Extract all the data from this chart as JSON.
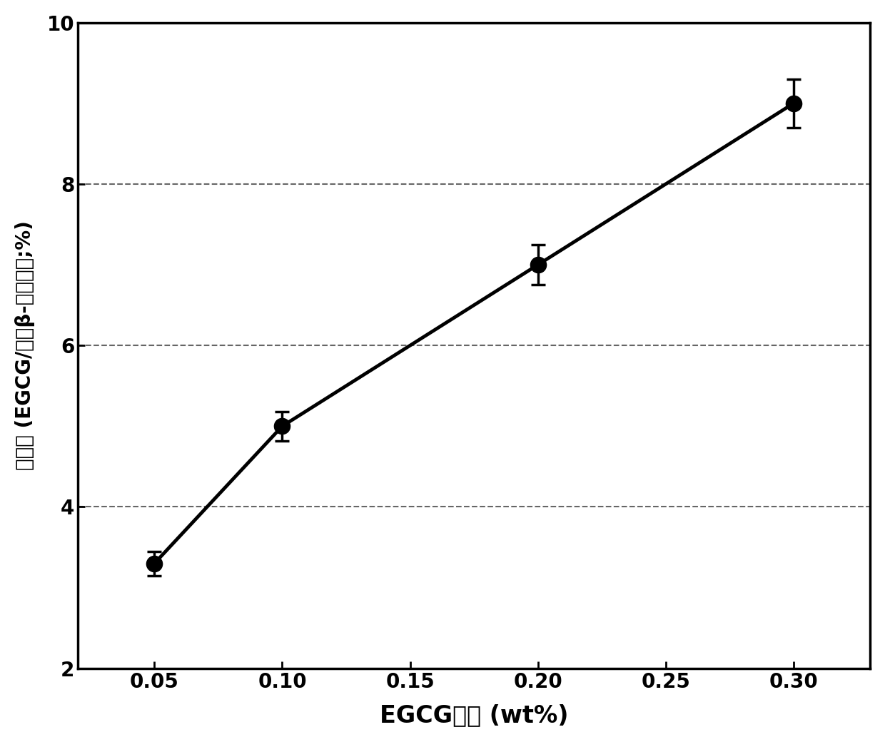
{
  "x": [
    0.05,
    0.1,
    0.2,
    0.3
  ],
  "y": [
    3.3,
    5.0,
    7.0,
    9.0
  ],
  "yerr": [
    0.15,
    0.18,
    0.25,
    0.3
  ],
  "xlabel": "EGCG浓度 (wt%)",
  "ylabel": "荷载量 (EGCG/大豆β-伴球蛋白;%)",
  "xlim": [
    0.02,
    0.33
  ],
  "ylim": [
    2,
    10
  ],
  "yticks": [
    2,
    4,
    6,
    8,
    10
  ],
  "xticks": [
    0.05,
    0.1,
    0.15,
    0.2,
    0.25,
    0.3
  ],
  "xtick_labels": [
    "0.05",
    "0.10",
    "0.15",
    "0.20",
    "0.25",
    "0.30"
  ],
  "grid_color": "#000000",
  "line_color": "#000000",
  "marker_color": "#000000",
  "background_color": "#ffffff",
  "marker_size": 16,
  "line_width": 3.5,
  "xlabel_fontsize": 24,
  "ylabel_fontsize": 20,
  "tick_fontsize": 20
}
